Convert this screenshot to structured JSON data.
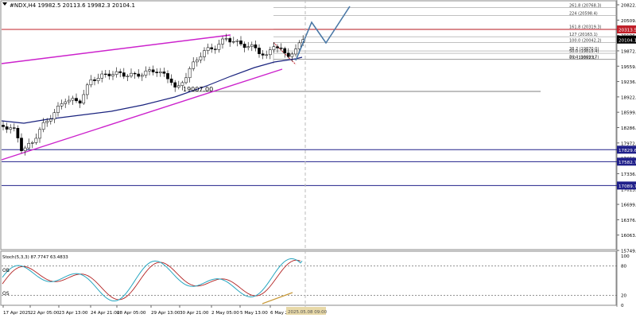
{
  "header": {
    "menu_icon": "triangle-down-icon",
    "title": "#NDX,H4  19982.5 20113.6 19982.3 20104.1"
  },
  "main_chart": {
    "price_scale": [
      "20822.5",
      "20509.6",
      "20196.3",
      "19872.0",
      "19559.0",
      "19236.0",
      "18922.5",
      "18599.5",
      "18286.0",
      "17972.5",
      "17659.0",
      "17336.0",
      "17013.0",
      "16699.5",
      "16376.5",
      "16063.0",
      "15749.5"
    ],
    "hlines": [
      {
        "name": "red-resistance",
        "price": 20313.5,
        "label": "20313.5",
        "color": "#c0202a"
      },
      {
        "name": "blue-level-1",
        "price": 17829.6,
        "label": "17829.6",
        "color": "#20208a"
      },
      {
        "name": "blue-level-2",
        "price": 17582.7,
        "label": "17582.7",
        "color": "#20208a"
      },
      {
        "name": "blue-level-3",
        "price": 17089.7,
        "label": "17089.7",
        "color": "#20208a"
      }
    ],
    "current_price_label": "20104.1",
    "price_annotation": "19007.00",
    "fib_levels": [
      {
        "label": "261.8 (20768.3)",
        "value": 20768.3
      },
      {
        "label": "224 (20598.4)",
        "value": 20598.4
      },
      {
        "label": "161.8 (20319.3)",
        "value": 20319.3
      },
      {
        "label": "127 (20163.1)",
        "value": 20163.1
      },
      {
        "label": "100.0 (20042.2)",
        "value": 20042.2
      },
      {
        "label": "38.2 (19870.0)",
        "value": 19870.0
      },
      {
        "label": "50.0 (19819.4)",
        "value": 19819.4
      },
      {
        "label": "76.4 (19699.7)",
        "value": 19699.7
      },
      {
        "label": "0.0 (19692.1)",
        "value": 19692.1
      }
    ],
    "colors": {
      "channel": "#cc22cc",
      "ma": "#1a237e",
      "projection": "#4a78a6",
      "fib": "#9a9a9a",
      "candle": "#000000"
    }
  },
  "stochastic": {
    "label": "Stoch(5,3,3) 87.7747 63.4833",
    "ob_label": "OB",
    "os_label": "OS",
    "scale": [
      "100",
      "80",
      "20",
      "0"
    ],
    "colors": {
      "main": "#26a6c0",
      "signal": "#b22222",
      "divergence": "#c89a3a"
    }
  },
  "time_axis": [
    "17 Apr 2025",
    "22 Apr 05:00",
    "23 Apr 13:00",
    "24 Apr 21:00",
    "28 Apr 05:00",
    "29 Apr 13:00",
    "30 Apr 21:00",
    "2 May 05:00",
    "5 May 13:00",
    "6 May 21:00"
  ],
  "time_cursor_label": "2025.05.08 09:00"
}
